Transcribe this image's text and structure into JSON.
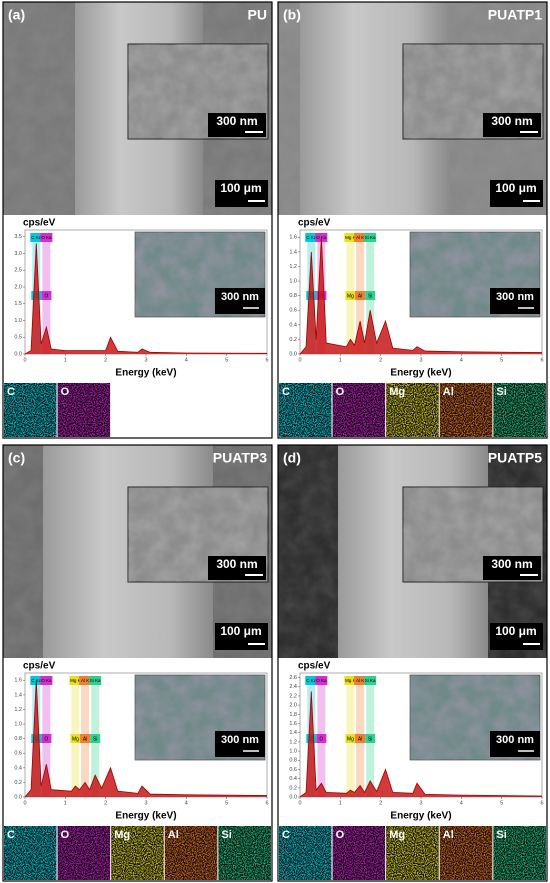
{
  "panels": [
    {
      "label": "(a)",
      "title": "PU",
      "inset_scale": "300 nm",
      "scale": "100 μm",
      "spectrum": {
        "y_label": "cps/eV",
        "x_label": "Energy (keV)",
        "map_scale": "300 nm",
        "xlim": [
          0,
          6
        ],
        "xticks": [
          0,
          1,
          2,
          3,
          4,
          5,
          6
        ],
        "ylim": [
          0,
          3.7
        ],
        "yticks": [
          {
            "value": 0,
            "label": "0.0"
          },
          {
            "value": 0.5,
            "label": "0.5"
          },
          {
            "value": 1,
            "label": "1.0"
          },
          {
            "value": 1.5,
            "label": "1.5"
          },
          {
            "value": 2,
            "label": "2.0"
          },
          {
            "value": 2.5,
            "label": "2.5"
          },
          {
            "value": 3,
            "label": "3.0"
          },
          {
            "value": 3.5,
            "label": "3.5"
          }
        ],
        "x": [
          0,
          0.15,
          0.28,
          0.4,
          0.53,
          0.65,
          1,
          2,
          2.12,
          2.3,
          2.8,
          2.9,
          3.1,
          4,
          6
        ],
        "values": [
          0,
          0.1,
          3.3,
          0.3,
          0.8,
          0.15,
          0.1,
          0.1,
          0.5,
          0.08,
          0.05,
          0.15,
          0.05,
          0.03,
          0.02
        ],
        "markers": [
          {
            "label": "C Ka",
            "short": "C",
            "energy": 0.28,
            "color": "#00c8d8"
          },
          {
            "label": "O Ka",
            "short": "O",
            "energy": 0.53,
            "color": "#d030d0"
          }
        ]
      },
      "maps": [
        {
          "label": "C",
          "color": "#00d0e0"
        },
        {
          "label": "O",
          "color": "#c020c0"
        }
      ]
    },
    {
      "label": "(b)",
      "title": "PUATP1",
      "inset_scale": "300 nm",
      "scale": "100 μm",
      "spectrum": {
        "y_label": "cps/eV",
        "x_label": "Energy (keV)",
        "map_scale": "300 nm",
        "xlim": [
          0,
          6
        ],
        "xticks": [
          0,
          1,
          2,
          3,
          4,
          5,
          6
        ],
        "ylim": [
          0,
          1.7
        ],
        "yticks": [
          {
            "value": 0,
            "label": "0.0"
          },
          {
            "value": 0.2,
            "label": "0.2"
          },
          {
            "value": 0.4,
            "label": "0.4"
          },
          {
            "value": 0.6,
            "label": "0.6"
          },
          {
            "value": 0.8,
            "label": "0.8"
          },
          {
            "value": 1,
            "label": "1.0"
          },
          {
            "value": 1.2,
            "label": "1.2"
          },
          {
            "value": 1.4,
            "label": "1.4"
          },
          {
            "value": 1.6,
            "label": "1.6"
          }
        ],
        "x": [
          0,
          0.15,
          0.28,
          0.4,
          0.53,
          0.65,
          1.15,
          1.25,
          1.35,
          1.49,
          1.6,
          1.74,
          1.9,
          2.12,
          2.3,
          2.8,
          2.9,
          3.1,
          4,
          6
        ],
        "values": [
          0,
          0.1,
          1.4,
          0.2,
          1.6,
          0.15,
          0.1,
          0.2,
          0.12,
          0.45,
          0.15,
          0.6,
          0.15,
          0.45,
          0.08,
          0.05,
          0.1,
          0.04,
          0.03,
          0.02
        ],
        "markers": [
          {
            "label": "C Ka",
            "short": "C",
            "energy": 0.28,
            "color": "#00c8d8"
          },
          {
            "label": "O Ka",
            "short": "O",
            "energy": 0.53,
            "color": "#d030d0"
          },
          {
            "label": "Mg K",
            "short": "Mg",
            "energy": 1.25,
            "color": "#e8e020"
          },
          {
            "label": "Al K",
            "short": "Al",
            "energy": 1.49,
            "color": "#f08030"
          },
          {
            "label": "Si Ka",
            "short": "Si",
            "energy": 1.74,
            "color": "#30d090"
          }
        ]
      },
      "maps": [
        {
          "label": "C",
          "color": "#00d0e0"
        },
        {
          "label": "O",
          "color": "#c020c0"
        },
        {
          "label": "Mg",
          "color": "#d8d020"
        },
        {
          "label": "Al",
          "color": "#e07020"
        },
        {
          "label": "Si",
          "color": "#20c080"
        }
      ]
    },
    {
      "label": "(c)",
      "title": "PUATP3",
      "inset_scale": "300 nm",
      "scale": "100 μm",
      "spectrum": {
        "y_label": "cps/eV",
        "x_label": "Energy (keV)",
        "map_scale": "300 nm",
        "xlim": [
          0,
          6
        ],
        "xticks": [
          0,
          1,
          2,
          3,
          4,
          5,
          6
        ],
        "ylim": [
          0,
          1.7
        ],
        "yticks": [
          {
            "value": 0,
            "label": "0.0"
          },
          {
            "value": 0.2,
            "label": "0.2"
          },
          {
            "value": 0.4,
            "label": "0.4"
          },
          {
            "value": 0.6,
            "label": "0.6"
          },
          {
            "value": 0.8,
            "label": "0.8"
          },
          {
            "value": 1,
            "label": "1.0"
          },
          {
            "value": 1.2,
            "label": "1.2"
          },
          {
            "value": 1.4,
            "label": "1.4"
          },
          {
            "value": 1.6,
            "label": "1.6"
          }
        ],
        "x": [
          0,
          0.15,
          0.28,
          0.4,
          0.53,
          0.65,
          1.15,
          1.25,
          1.35,
          1.49,
          1.6,
          1.74,
          1.9,
          2.12,
          2.3,
          2.8,
          2.9,
          3.1,
          4,
          6
        ],
        "values": [
          0,
          0.1,
          1.6,
          0.15,
          0.45,
          0.1,
          0.08,
          0.15,
          0.1,
          0.2,
          0.1,
          0.3,
          0.12,
          0.4,
          0.08,
          0.05,
          0.15,
          0.04,
          0.03,
          0.02
        ],
        "markers": [
          {
            "label": "C Ka",
            "short": "C",
            "energy": 0.28,
            "color": "#00c8d8"
          },
          {
            "label": "O Ka",
            "short": "O",
            "energy": 0.53,
            "color": "#d030d0"
          },
          {
            "label": "Mg K",
            "short": "Mg",
            "energy": 1.25,
            "color": "#e8e020"
          },
          {
            "label": "Al K",
            "short": "Al",
            "energy": 1.49,
            "color": "#f08030"
          },
          {
            "label": "Si Ka",
            "short": "Si",
            "energy": 1.74,
            "color": "#30d090"
          }
        ]
      },
      "maps": [
        {
          "label": "C",
          "color": "#00d0e0"
        },
        {
          "label": "O",
          "color": "#c020c0"
        },
        {
          "label": "Mg",
          "color": "#d8d020"
        },
        {
          "label": "Al",
          "color": "#e07020"
        },
        {
          "label": "Si",
          "color": "#20c080"
        }
      ]
    },
    {
      "label": "(d)",
      "title": "PUATP5",
      "inset_scale": "300 nm",
      "scale": "100 μm",
      "spectrum": {
        "y_label": "cps/eV",
        "x_label": "Energy (keV)",
        "map_scale": "300 nm",
        "xlim": [
          0,
          6
        ],
        "xticks": [
          0,
          1,
          2,
          3,
          4,
          5,
          6
        ],
        "ylim": [
          0,
          2.7
        ],
        "yticks": [
          {
            "value": 0,
            "label": "0.0"
          },
          {
            "value": 0.2,
            "label": "0.2"
          },
          {
            "value": 0.4,
            "label": "0.4"
          },
          {
            "value": 0.6,
            "label": "0.6"
          },
          {
            "value": 0.8,
            "label": "0.8"
          },
          {
            "value": 1,
            "label": "1.0"
          },
          {
            "value": 1.2,
            "label": "1.2"
          },
          {
            "value": 1.4,
            "label": "1.4"
          },
          {
            "value": 1.6,
            "label": "1.6"
          },
          {
            "value": 1.8,
            "label": "1.8"
          },
          {
            "value": 2,
            "label": "2.0"
          },
          {
            "value": 2.2,
            "label": "2.2"
          },
          {
            "value": 2.4,
            "label": "2.4"
          },
          {
            "value": 2.6,
            "label": "2.6"
          }
        ],
        "x": [
          0,
          0.15,
          0.28,
          0.4,
          0.53,
          0.65,
          1.15,
          1.25,
          1.35,
          1.49,
          1.6,
          1.74,
          1.9,
          2.12,
          2.3,
          2.8,
          2.9,
          3.1,
          4,
          6
        ],
        "values": [
          0,
          0.1,
          2.3,
          0.15,
          0.3,
          0.1,
          0.08,
          0.15,
          0.1,
          0.25,
          0.1,
          0.35,
          0.12,
          0.6,
          0.1,
          0.08,
          0.3,
          0.06,
          0.04,
          0.02
        ],
        "markers": [
          {
            "label": "C Ka",
            "short": "C",
            "energy": 0.28,
            "color": "#00c8d8"
          },
          {
            "label": "O Ka",
            "short": "O",
            "energy": 0.53,
            "color": "#d030d0"
          },
          {
            "label": "Mg K",
            "short": "Mg",
            "energy": 1.25,
            "color": "#e8e020"
          },
          {
            "label": "Al K",
            "short": "Al",
            "energy": 1.49,
            "color": "#f08030"
          },
          {
            "label": "Si Ka",
            "short": "Si",
            "energy": 1.74,
            "color": "#30d090"
          }
        ]
      },
      "maps": [
        {
          "label": "C",
          "color": "#00d0e0"
        },
        {
          "label": "O",
          "color": "#c020c0"
        },
        {
          "label": "Mg",
          "color": "#d8d020"
        },
        {
          "label": "Al",
          "color": "#e07020"
        },
        {
          "label": "Si",
          "color": "#20c080"
        }
      ]
    }
  ]
}
